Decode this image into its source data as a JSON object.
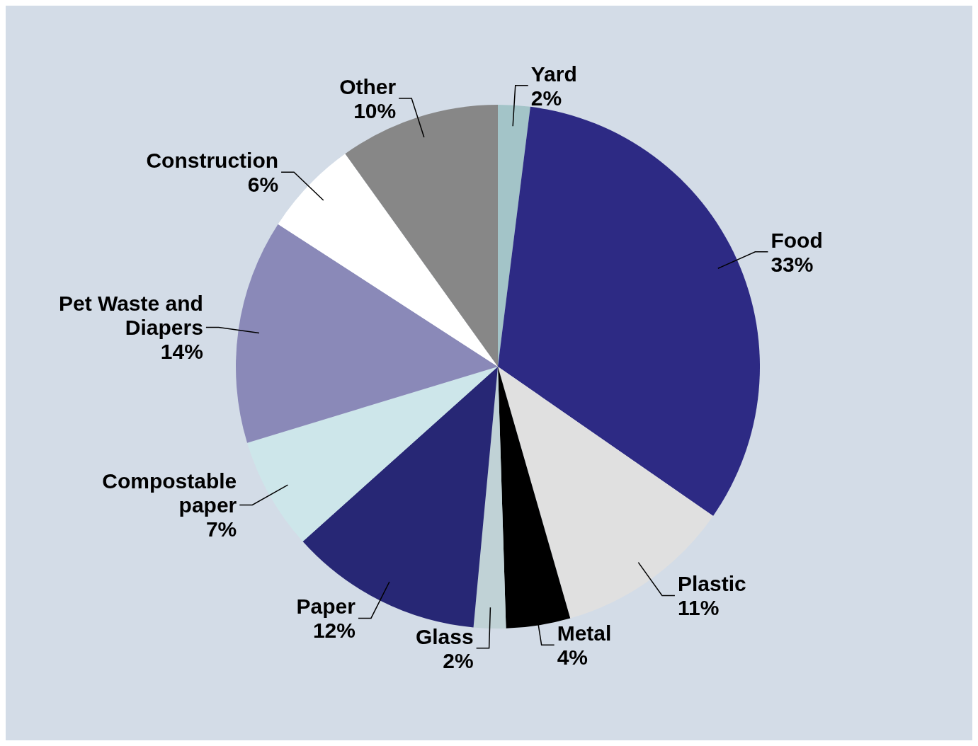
{
  "chart_data": {
    "type": "pie",
    "categories": [
      "Yard",
      "Food",
      "Plastic",
      "Metal",
      "Glass",
      "Paper",
      "Compostable paper",
      "Pet Waste and Diapers",
      "Construction",
      "Other"
    ],
    "values": [
      2,
      33,
      11,
      4,
      2,
      12,
      7,
      14,
      6,
      10
    ],
    "value_labels": [
      "2%",
      "33%",
      "11%",
      "4%",
      "2%",
      "12%",
      "7%",
      "14%",
      "6%",
      "10%"
    ],
    "colors": [
      "#a3c4c8",
      "#2d2a84",
      "#e0e0e0",
      "#000000",
      "#c0d2d6",
      "#272775",
      "#cde6ea",
      "#8a89b8",
      "#ffffff",
      "#878787"
    ]
  }
}
